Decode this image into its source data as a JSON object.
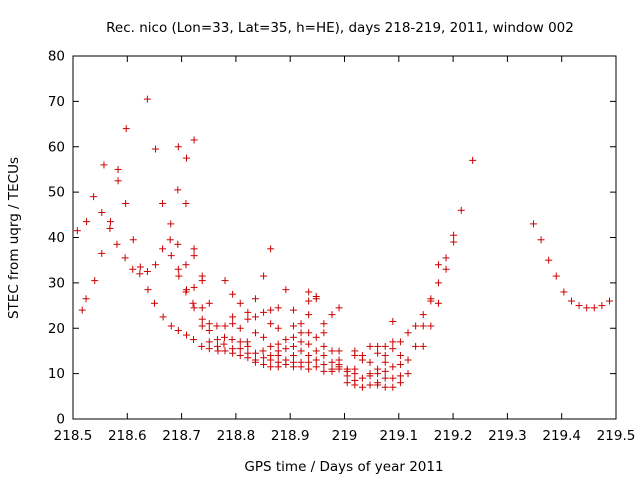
{
  "chart_data": {
    "type": "scatter",
    "title": "Rec. nico (Lon=33, Lat=35, h=HE), days 218-219, 2011, window 002",
    "xlabel": "GPS time / Days of year 2011",
    "ylabel": "STEC from uqrg / TECUs",
    "xlim": [
      218.5,
      219.5
    ],
    "ylim": [
      0,
      80
    ],
    "xticks": [
      "218.5",
      "218.6",
      "218.7",
      "218.8",
      "218.9",
      "219",
      "219.1",
      "219.2",
      "219.3",
      "219.4",
      "219.5"
    ],
    "yticks": [
      "0",
      "10",
      "20",
      "30",
      "40",
      "50",
      "60",
      "70",
      "80"
    ],
    "marker": "+",
    "color": "#cc0000",
    "grid": false,
    "points": [
      [
        218.508,
        41.5
      ],
      [
        218.517,
        24
      ],
      [
        218.525,
        43.5
      ],
      [
        218.524,
        26.5
      ],
      [
        218.538,
        49
      ],
      [
        218.54,
        30.5
      ],
      [
        218.553,
        45.5
      ],
      [
        218.553,
        36.5
      ],
      [
        218.557,
        56
      ],
      [
        218.569,
        43.5
      ],
      [
        218.568,
        42
      ],
      [
        218.583,
        55
      ],
      [
        218.583,
        52.5
      ],
      [
        218.581,
        38.5
      ],
      [
        218.598,
        64
      ],
      [
        218.597,
        47.5
      ],
      [
        218.596,
        35.5
      ],
      [
        218.611,
        39.5
      ],
      [
        218.61,
        33
      ],
      [
        218.624,
        33.5
      ],
      [
        218.623,
        32
      ],
      [
        218.637,
        70.5
      ],
      [
        218.637,
        32.5
      ],
      [
        218.638,
        28.5
      ],
      [
        218.652,
        59.5
      ],
      [
        218.652,
        34
      ],
      [
        218.65,
        25.5
      ],
      [
        218.665,
        47.5
      ],
      [
        218.665,
        37.5
      ],
      [
        218.666,
        22.5
      ],
      [
        218.68,
        43
      ],
      [
        218.679,
        39.5
      ],
      [
        218.681,
        36
      ],
      [
        218.681,
        20.5
      ],
      [
        218.694,
        60
      ],
      [
        218.693,
        50.5
      ],
      [
        218.693,
        38.5
      ],
      [
        218.694,
        33
      ],
      [
        218.695,
        31.5
      ],
      [
        218.694,
        19.5
      ],
      [
        218.709,
        57.5
      ],
      [
        218.708,
        47.5
      ],
      [
        218.708,
        34
      ],
      [
        218.709,
        28.5
      ],
      [
        218.708,
        28
      ],
      [
        218.709,
        18.5
      ],
      [
        218.723,
        61.5
      ],
      [
        218.723,
        37.5
      ],
      [
        218.723,
        36
      ],
      [
        218.723,
        29
      ],
      [
        218.721,
        25.5
      ],
      [
        218.723,
        24.5
      ],
      [
        218.722,
        17.5
      ],
      [
        218.738,
        31.5
      ],
      [
        218.738,
        30.5
      ],
      [
        218.738,
        24.5
      ],
      [
        218.738,
        22
      ],
      [
        218.738,
        20.5
      ],
      [
        218.737,
        16
      ],
      [
        218.751,
        25.5
      ],
      [
        218.751,
        21
      ],
      [
        218.751,
        19.5
      ],
      [
        218.751,
        17
      ],
      [
        218.751,
        15.5
      ],
      [
        218.765,
        20.5
      ],
      [
        218.766,
        17.5
      ],
      [
        218.766,
        16
      ],
      [
        218.767,
        15
      ],
      [
        218.78,
        30.5
      ],
      [
        218.78,
        20.5
      ],
      [
        218.779,
        18
      ],
      [
        218.778,
        16.5
      ],
      [
        218.78,
        15
      ],
      [
        218.794,
        27.5
      ],
      [
        218.794,
        22.5
      ],
      [
        218.794,
        21
      ],
      [
        218.793,
        17.5
      ],
      [
        218.794,
        15.5
      ],
      [
        218.794,
        14.5
      ],
      [
        218.808,
        25.5
      ],
      [
        218.808,
        20
      ],
      [
        218.808,
        17
      ],
      [
        218.808,
        15.5
      ],
      [
        218.808,
        14
      ],
      [
        218.822,
        23.5
      ],
      [
        218.822,
        22
      ],
      [
        218.821,
        17
      ],
      [
        218.822,
        16
      ],
      [
        218.822,
        14.5
      ],
      [
        218.822,
        13.5
      ],
      [
        218.836,
        26.5
      ],
      [
        218.836,
        22.5
      ],
      [
        218.836,
        19
      ],
      [
        218.836,
        14.5
      ],
      [
        218.836,
        13
      ],
      [
        218.836,
        12.5
      ],
      [
        218.851,
        31.5
      ],
      [
        218.851,
        23.5
      ],
      [
        218.851,
        18
      ],
      [
        218.85,
        15
      ],
      [
        218.851,
        13.5
      ],
      [
        218.851,
        12
      ],
      [
        218.864,
        37.5
      ],
      [
        218.864,
        24
      ],
      [
        218.864,
        21
      ],
      [
        218.864,
        16
      ],
      [
        218.864,
        14
      ],
      [
        218.864,
        13
      ],
      [
        218.864,
        11.5
      ],
      [
        218.878,
        24.5
      ],
      [
        218.878,
        20
      ],
      [
        218.878,
        16.5
      ],
      [
        218.878,
        15
      ],
      [
        218.878,
        14
      ],
      [
        218.878,
        12.5
      ],
      [
        218.878,
        11.5
      ],
      [
        218.892,
        28.5
      ],
      [
        218.892,
        17.5
      ],
      [
        218.892,
        15.5
      ],
      [
        218.892,
        13
      ],
      [
        218.892,
        12
      ],
      [
        218.906,
        24
      ],
      [
        218.906,
        20.5
      ],
      [
        218.906,
        18
      ],
      [
        218.906,
        16
      ],
      [
        218.906,
        14
      ],
      [
        218.906,
        12.5
      ],
      [
        218.906,
        11.5
      ],
      [
        218.92,
        21
      ],
      [
        218.92,
        19
      ],
      [
        218.92,
        17
      ],
      [
        218.92,
        15
      ],
      [
        218.92,
        12.5
      ],
      [
        218.92,
        11.5
      ],
      [
        218.934,
        28
      ],
      [
        218.934,
        26
      ],
      [
        218.934,
        23
      ],
      [
        218.934,
        19
      ],
      [
        218.934,
        16.5
      ],
      [
        218.934,
        14
      ],
      [
        218.934,
        12.5
      ],
      [
        218.934,
        11
      ],
      [
        218.948,
        27
      ],
      [
        218.948,
        26.5
      ],
      [
        218.948,
        18
      ],
      [
        218.948,
        15
      ],
      [
        218.948,
        13
      ],
      [
        218.948,
        11.5
      ],
      [
        218.962,
        21
      ],
      [
        218.962,
        19
      ],
      [
        218.962,
        16
      ],
      [
        218.962,
        14
      ],
      [
        218.962,
        12
      ],
      [
        218.962,
        10.5
      ],
      [
        218.977,
        23
      ],
      [
        218.977,
        15
      ],
      [
        218.977,
        12.5
      ],
      [
        218.977,
        11
      ],
      [
        218.977,
        10.5
      ],
      [
        218.99,
        24.5
      ],
      [
        218.99,
        15
      ],
      [
        218.99,
        13
      ],
      [
        218.99,
        12
      ],
      [
        218.99,
        11.5
      ],
      [
        218.99,
        11
      ],
      [
        219.005,
        11
      ],
      [
        219.005,
        10.5
      ],
      [
        219.005,
        9.5
      ],
      [
        219.005,
        8
      ],
      [
        219.019,
        15
      ],
      [
        219.019,
        14
      ],
      [
        219.019,
        11
      ],
      [
        219.019,
        10
      ],
      [
        219.019,
        8.5
      ],
      [
        219.019,
        7.5
      ],
      [
        219.033,
        14
      ],
      [
        219.033,
        13
      ],
      [
        219.033,
        9
      ],
      [
        219.033,
        7
      ],
      [
        219.047,
        16
      ],
      [
        219.047,
        12.5
      ],
      [
        219.047,
        10
      ],
      [
        219.047,
        9.5
      ],
      [
        219.047,
        7.5
      ],
      [
        219.061,
        16
      ],
      [
        219.061,
        14.5
      ],
      [
        219.061,
        11
      ],
      [
        219.061,
        10
      ],
      [
        219.061,
        8
      ],
      [
        219.061,
        7.5
      ],
      [
        219.075,
        16
      ],
      [
        219.075,
        14
      ],
      [
        219.075,
        12.5
      ],
      [
        219.075,
        10.5
      ],
      [
        219.075,
        9
      ],
      [
        219.075,
        7
      ],
      [
        219.089,
        21.5
      ],
      [
        219.089,
        17
      ],
      [
        219.089,
        15.5
      ],
      [
        219.089,
        11.5
      ],
      [
        219.089,
        9
      ],
      [
        219.089,
        7
      ],
      [
        219.103,
        17
      ],
      [
        219.103,
        14
      ],
      [
        219.103,
        12
      ],
      [
        219.103,
        9.5
      ],
      [
        219.103,
        8
      ],
      [
        219.117,
        19
      ],
      [
        219.117,
        13
      ],
      [
        219.117,
        10
      ],
      [
        219.131,
        20.5
      ],
      [
        219.131,
        16
      ],
      [
        219.145,
        23
      ],
      [
        219.145,
        20.5
      ],
      [
        219.145,
        16
      ],
      [
        219.159,
        26.5
      ],
      [
        219.159,
        26
      ],
      [
        219.159,
        20.5
      ],
      [
        219.173,
        34
      ],
      [
        219.173,
        30
      ],
      [
        219.173,
        25.5
      ],
      [
        219.187,
        35.5
      ],
      [
        219.187,
        33
      ],
      [
        219.201,
        40.5
      ],
      [
        219.201,
        39
      ],
      [
        219.215,
        46
      ],
      [
        219.236,
        57
      ],
      [
        219.348,
        43
      ],
      [
        219.362,
        39.5
      ],
      [
        219.376,
        35
      ],
      [
        219.39,
        31.5
      ],
      [
        219.404,
        28
      ],
      [
        219.418,
        26
      ],
      [
        219.432,
        25
      ],
      [
        219.446,
        24.5
      ],
      [
        219.46,
        24.5
      ],
      [
        219.474,
        25
      ],
      [
        219.488,
        26
      ]
    ]
  }
}
